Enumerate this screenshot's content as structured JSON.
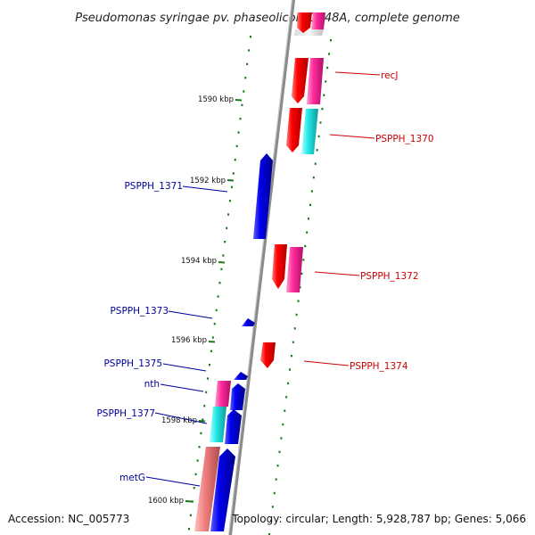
{
  "title": "Pseudomonas syringae pv. phaseolicola 1448A, complete genome",
  "accession_text": "Accession: NC_005773",
  "summary_text": "Topology: circular; Length: 5,928,787 bp; Genes: 5,066",
  "colors": {
    "label_forward": "#cc0000",
    "label_reverse": "#000099",
    "tick": "#1a7a1a",
    "backbone": "#8a8a8a",
    "cds_forward": "#ff0000",
    "cds_reverse": "#0000ee",
    "gene_pink": "#ff2a9a",
    "gene_cyan": "#22e8e8",
    "gene_salmon": "#f08080"
  },
  "ticks": [
    "1590 kbp",
    "1592 kbp",
    "1594 kbp",
    "1596 kbp",
    "1598 kbp",
    "1600 kbp"
  ],
  "labels": {
    "recJ": "recJ",
    "PSPPH_1370": "PSPPH_1370",
    "PSPPH_1371": "PSPPH_1371",
    "PSPPH_1372": "PSPPH_1372",
    "PSPPH_1373": "PSPPH_1373",
    "PSPPH_1374": "PSPPH_1374",
    "PSPPH_1375": "PSPPH_1375",
    "nth": "nth",
    "PSPPH_1377": "PSPPH_1377",
    "metG": "metG"
  }
}
